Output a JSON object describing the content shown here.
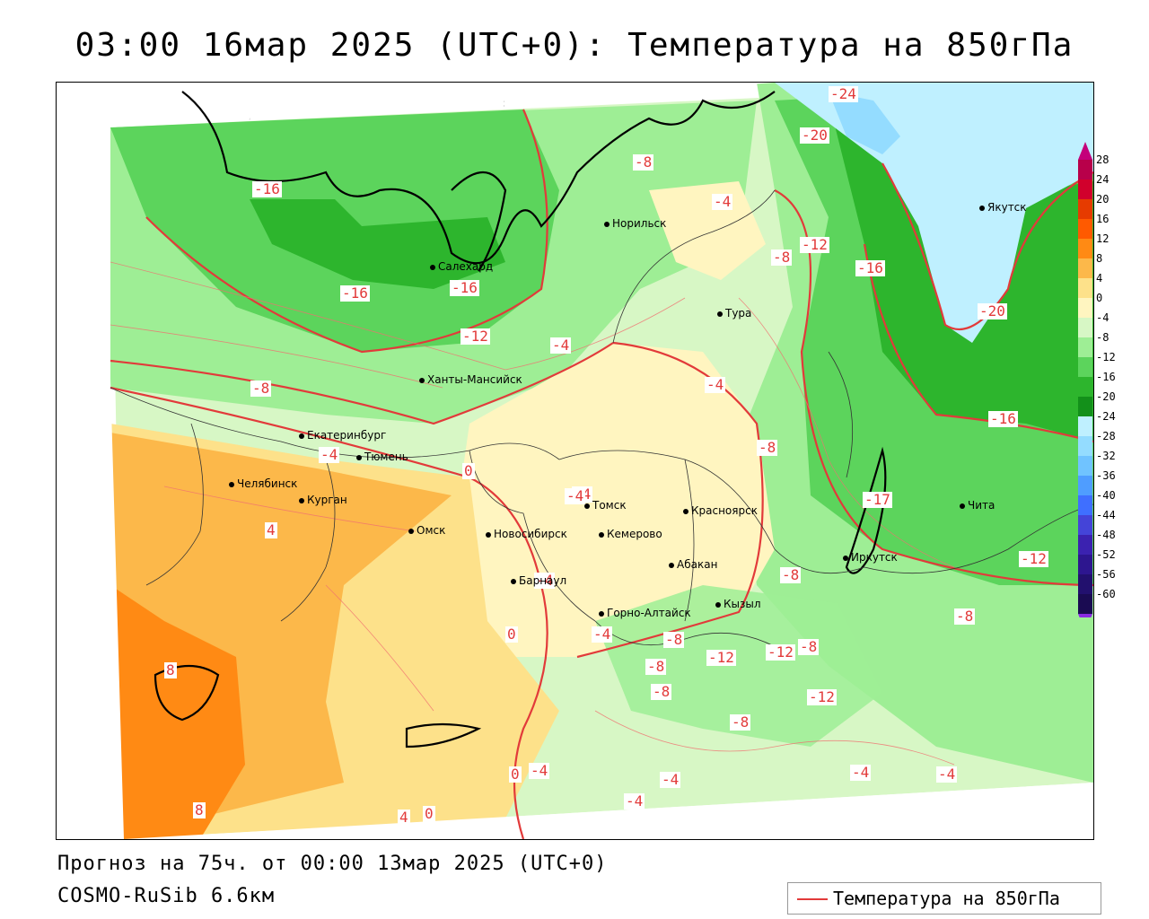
{
  "title": "03:00 16мар 2025 (UTC+0): Температура на 850гПа",
  "footer": {
    "forecast": "Прогноз на 75ч. от 00:00 13мар 2025 (UTC+0)",
    "model": "COSMO-RuSib 6.6км"
  },
  "legend": {
    "label": "Температура на 850гПа",
    "color": "#e23a3a"
  },
  "color_scale": {
    "labels": [
      "28",
      "24",
      "20",
      "16",
      "12",
      "8",
      "4",
      "0",
      "-4",
      "-8",
      "-12",
      "-16",
      "-20",
      "-24",
      "-28",
      "-32",
      "-36",
      "-40",
      "-44",
      "-48",
      "-52",
      "-56",
      "-60"
    ],
    "colors": [
      "#b8004a",
      "#d1002c",
      "#e63b00",
      "#ff5a00",
      "#ff8a14",
      "#fcb84a",
      "#fde18a",
      "#fff5c0",
      "#d7f7c5",
      "#9eee95",
      "#5cd45c",
      "#2db52d",
      "#13901a",
      "#bff0ff",
      "#94dcff",
      "#70c3ff",
      "#4f9dff",
      "#3f6fff",
      "#4444d8",
      "#3b22b0",
      "#2d168f",
      "#22106e",
      "#1a0b52"
    ]
  },
  "cities": [
    {
      "name": "Якутск"
    },
    {
      "name": "Норильск"
    },
    {
      "name": "Салехард"
    },
    {
      "name": "Тура"
    },
    {
      "name": "Ханты-Мансийск"
    },
    {
      "name": "Екатеринбург"
    },
    {
      "name": "Тюмень"
    },
    {
      "name": "Челябинск"
    },
    {
      "name": "Курган"
    },
    {
      "name": "Омск"
    },
    {
      "name": "Новосибирск"
    },
    {
      "name": "Томск"
    },
    {
      "name": "Кемерово"
    },
    {
      "name": "Красноярск"
    },
    {
      "name": "Барнаул"
    },
    {
      "name": "Абакан"
    },
    {
      "name": "Горно-Алтайск"
    },
    {
      "name": "Кызыл"
    },
    {
      "name": "Иркутск"
    },
    {
      "name": "Чита"
    }
  ],
  "isotherm_labels": [
    "-24",
    "-20",
    "-16",
    "-8",
    "-4",
    "-12",
    "-8",
    "-16",
    "-16",
    "-16",
    "-20",
    "-12",
    "-4",
    "-8",
    "-4",
    "-8",
    "-16",
    "-4",
    "0",
    "-4",
    "-17",
    "-12",
    "4",
    "8",
    "8",
    "-8",
    "0",
    "-4",
    "-12",
    "-12",
    "-8",
    "-8",
    "-12",
    "-8",
    "-8",
    "-4",
    "-4",
    "-4",
    "-8",
    "-4",
    "-4",
    "0",
    "4",
    "0",
    "-4",
    "-8",
    "-4"
  ]
}
